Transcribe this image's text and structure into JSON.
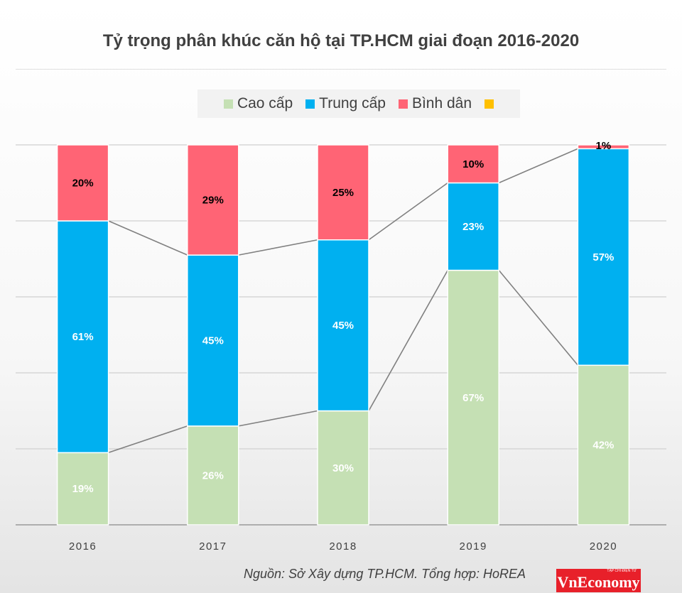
{
  "chart_data": {
    "type": "bar",
    "stacked": true,
    "title": "Tỷ trọng phân khúc căn hộ tại TP.HCM giai đoạn 2016-2020",
    "categories": [
      "2016",
      "2017",
      "2018",
      "2019",
      "2020"
    ],
    "series": [
      {
        "name": "Cao cấp",
        "color": "#c5e0b4",
        "values": [
          19,
          26,
          30,
          67,
          42
        ]
      },
      {
        "name": "Trung cấp",
        "color": "#00b0f0",
        "values": [
          61,
          45,
          45,
          23,
          57
        ]
      },
      {
        "name": "Bình dân",
        "color": "#ff6475",
        "values": [
          20,
          29,
          25,
          10,
          1
        ]
      },
      {
        "name": "",
        "color": "#ffc000",
        "values": [
          0,
          0,
          0,
          0,
          0
        ]
      }
    ],
    "data_labels": [
      [
        "19%",
        "26%",
        "30%",
        "67%",
        "42%"
      ],
      [
        "61%",
        "45%",
        "45%",
        "23%",
        "57%"
      ],
      [
        "20%",
        "29%",
        "25%",
        "10%",
        "1%"
      ]
    ],
    "ylim": [
      0,
      100
    ],
    "grid": true,
    "legend_position": "top",
    "source": "Nguồn: Sở Xây dựng TP.HCM. Tổng hợp: HoREA"
  },
  "logo": {
    "text": "VnEconomy",
    "tagline": "TẠP CHÍ ĐIỆN TỬ"
  }
}
